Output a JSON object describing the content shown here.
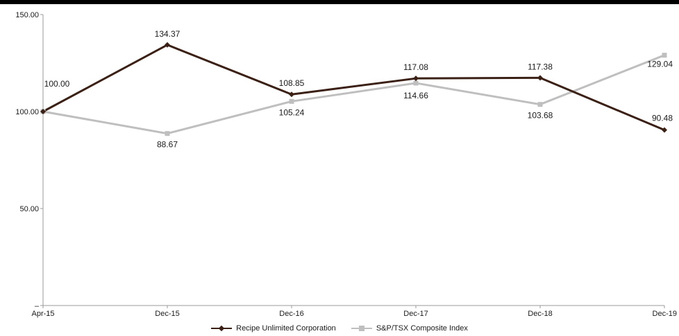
{
  "chart_data": {
    "type": "line",
    "title": "",
    "xlabel": "",
    "ylabel": "",
    "categories": [
      "Apr-15",
      "Dec-15",
      "Dec-16",
      "Dec-17",
      "Dec-18",
      "Dec-19"
    ],
    "ylim": [
      0,
      150
    ],
    "yticks": [
      0,
      50,
      100,
      150
    ],
    "ytick_labels": [
      "–",
      "50.00",
      "100.00",
      "150.00"
    ],
    "grid": false,
    "legend_position": "bottom",
    "series": [
      {
        "name": "Recipe Unlimited Corporation",
        "color": "#3b2015",
        "marker": "diamond",
        "values": [
          100.0,
          134.37,
          108.85,
          117.08,
          117.38,
          90.48
        ],
        "labels": [
          "100.00",
          "134.37",
          "108.85",
          "117.08",
          "117.38",
          "90.48"
        ]
      },
      {
        "name": "S&P/TSX Composite Index",
        "color": "#bfbfbf",
        "marker": "square",
        "values": [
          100.0,
          88.67,
          105.24,
          114.66,
          103.68,
          129.04
        ],
        "labels": [
          "",
          "88.67",
          "105.24",
          "114.66",
          "103.68",
          "129.04"
        ]
      }
    ]
  }
}
